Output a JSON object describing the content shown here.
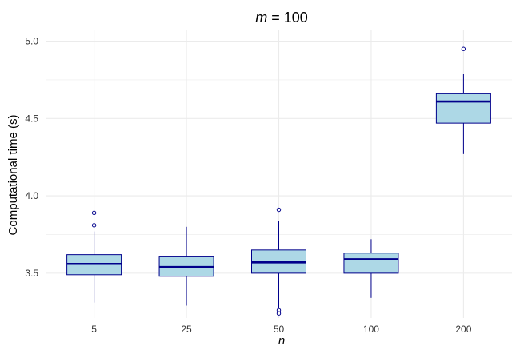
{
  "chart_data": {
    "type": "boxplot",
    "title": {
      "var": "m",
      "eq": " = ",
      "value": "100"
    },
    "xlabel": "n",
    "ylabel": "Computational time (s)",
    "categories": [
      "5",
      "25",
      "50",
      "100",
      "200"
    ],
    "ylim": [
      3.21,
      5.07
    ],
    "yticks": [
      "3.5",
      "4.0",
      "4.5",
      "5.0"
    ],
    "grid": true,
    "colors": {
      "box_fill": "#add8e6",
      "box_stroke": "#00008b",
      "grid": "#ebebeb"
    },
    "boxes": [
      {
        "category": "5",
        "whisker_low": 3.31,
        "q1": 3.49,
        "median": 3.56,
        "q3": 3.62,
        "whisker_high": 3.77,
        "outliers": [
          3.81,
          3.89
        ]
      },
      {
        "category": "25",
        "whisker_low": 3.29,
        "q1": 3.48,
        "median": 3.54,
        "q3": 3.61,
        "whisker_high": 3.8,
        "outliers": []
      },
      {
        "category": "50",
        "whisker_low": 3.27,
        "q1": 3.5,
        "median": 3.57,
        "q3": 3.65,
        "whisker_high": 3.84,
        "outliers": [
          3.91,
          3.26,
          3.24
        ]
      },
      {
        "category": "100",
        "whisker_low": 3.34,
        "q1": 3.5,
        "median": 3.59,
        "q3": 3.63,
        "whisker_high": 3.72,
        "outliers": []
      },
      {
        "category": "200",
        "whisker_low": 4.27,
        "q1": 4.47,
        "median": 4.61,
        "q3": 4.66,
        "whisker_high": 4.79,
        "outliers": [
          4.95
        ]
      }
    ]
  }
}
